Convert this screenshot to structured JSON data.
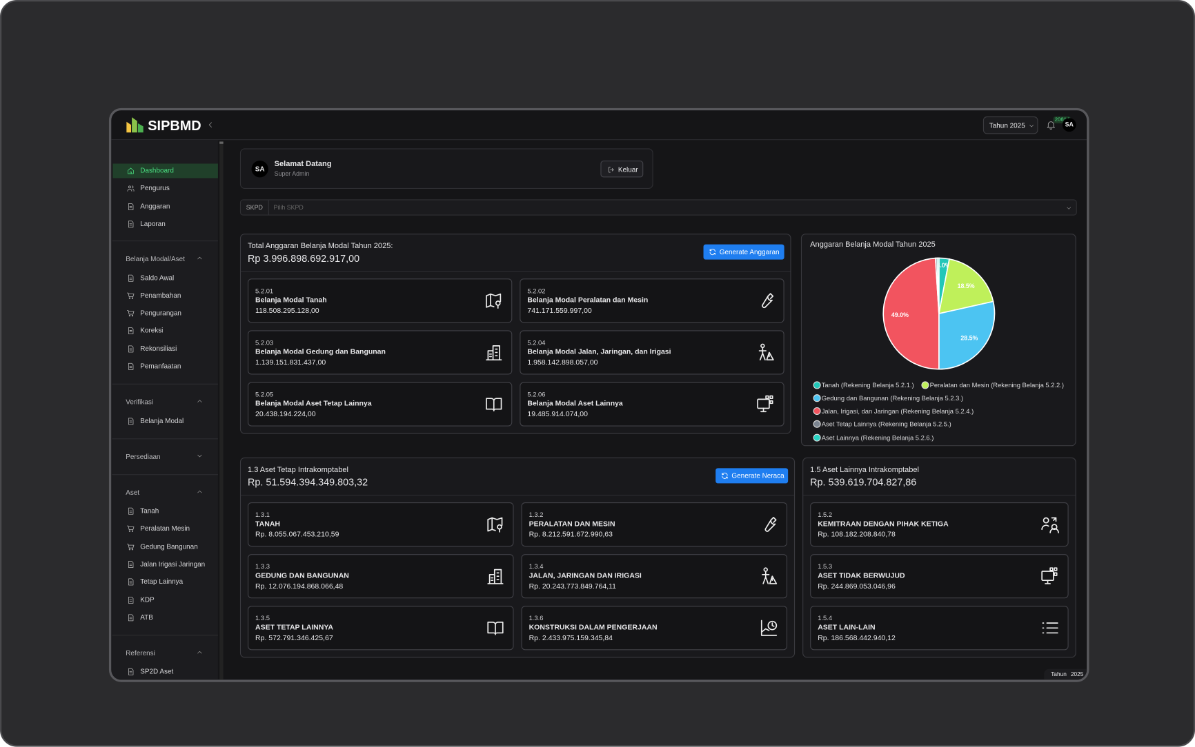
{
  "header": {
    "logo_text": "SIPBMD",
    "year_select": "Tahun 2025",
    "notification_badge": "20814",
    "avatar": "SA"
  },
  "sidebar": {
    "items": [
      "Dashboard",
      "Pengurus",
      "Anggaran",
      "Laporan"
    ],
    "sections": [
      {
        "title": "Belanja Modal/Aset",
        "items": [
          "Saldo Awal",
          "Penambahan",
          "Pengurangan",
          "Koreksi",
          "Rekonsiliasi",
          "Pemanfaatan"
        ]
      },
      {
        "title": "Verifikasi",
        "items": [
          "Belanja Modal"
        ]
      },
      {
        "title": "Persediaan",
        "items": []
      },
      {
        "title": "Aset",
        "items": [
          "Tanah",
          "Peralatan Mesin",
          "Gedung Bangunan",
          "Jalan Irigasi Jaringan",
          "Tetap Lainnya",
          "KDP",
          "ATB"
        ]
      },
      {
        "title": "Referensi",
        "items": [
          "SP2D Aset"
        ]
      }
    ]
  },
  "welcome": {
    "avatar": "SA",
    "title": "Selamat Datang",
    "role": "Super Admin",
    "button": "Keluar"
  },
  "filter": {
    "label": "SKPD",
    "placeholder": "Pilih SKPD"
  },
  "budget": {
    "title": "Total Anggaran Belanja Modal Tahun 2025:",
    "total": "Rp 3.996.898.692.917,00",
    "button": "Generate Anggaran",
    "cards": [
      {
        "code": "5.2.01",
        "name": "Belanja Modal Tanah",
        "amount": "118.508.295.128,00"
      },
      {
        "code": "5.2.02",
        "name": "Belanja Modal Peralatan dan Mesin",
        "amount": "741.171.559.997,00"
      },
      {
        "code": "5.2.03",
        "name": "Belanja Modal Gedung dan Bangunan",
        "amount": "1.139.151.831.437,00"
      },
      {
        "code": "5.2.04",
        "name": "Belanja Modal Jalan, Jaringan, dan Irigasi",
        "amount": "1.958.142.898.057,00"
      },
      {
        "code": "5.2.05",
        "name": "Belanja Modal Aset Tetap Lainnya",
        "amount": "20.438.194.224,00"
      },
      {
        "code": "5.2.06",
        "name": "Belanja Modal Aset Lainnya",
        "amount": "19.485.914.074,00"
      }
    ]
  },
  "chart_data": {
    "type": "pie",
    "title": "Anggaran Belanja Modal Tahun 2025",
    "categories": [
      "Tanah (Rekening Belanja 5.2.1.)",
      "Peralatan dan Mesin (Rekening Belanja 5.2.2.)",
      "Gedung dan Bangunan (Rekening Belanja 5.2.3.)",
      "Jalan, Irigasi, dan Jaringan (Rekening Belanja 5.2.4.)",
      "Aset Tetap Lainnya (Rekening Belanja 5.2.5.)",
      "Aset Lainnya (Rekening Belanja 5.2.6.)"
    ],
    "values": [
      3.0,
      18.5,
      28.5,
      49.0,
      0.5,
      0.5
    ],
    "value_labels": [
      "3.0%",
      "18.5%",
      "28.5%",
      "49.0%",
      null,
      null
    ],
    "colors": [
      "#22c7b8",
      "#bff05a",
      "#4cc4f2",
      "#f2545f",
      "#7b8490",
      "#2ad4c4"
    ]
  },
  "fixed_assets": {
    "title": "1.3 Aset Tetap Intrakomptabel",
    "total": "Rp. 51.594.394.349.803,32",
    "button": "Generate Neraca",
    "cards": [
      {
        "code": "1.3.1",
        "name": "TANAH",
        "amount": "Rp. 8.055.067.453.210,59"
      },
      {
        "code": "1.3.2",
        "name": "PERALATAN DAN MESIN",
        "amount": "Rp. 8.212.591.672.990,63"
      },
      {
        "code": "1.3.3",
        "name": "GEDUNG DAN BANGUNAN",
        "amount": "Rp. 12.076.194.868.066,48"
      },
      {
        "code": "1.3.4",
        "name": "JALAN, JARINGAN DAN IRIGASI",
        "amount": "Rp. 20.243.773.849.764,11"
      },
      {
        "code": "1.3.5",
        "name": "ASET TETAP LAINNYA",
        "amount": "Rp. 572.791.346.425,67"
      },
      {
        "code": "1.3.6",
        "name": "KONSTRUKSI DALAM PENGERJAAN",
        "amount": "Rp. 2.433.975.159.345,84"
      }
    ]
  },
  "other_assets": {
    "title": "1.5 Aset Lainnya Intrakomptabel",
    "total": "Rp. 539.619.704.827,86",
    "cards": [
      {
        "code": "1.5.2",
        "name": "KEMITRAAN DENGAN PIHAK KETIGA",
        "amount": "Rp. 108.182.208.840,78"
      },
      {
        "code": "1.5.3",
        "name": "ASET TIDAK BERWUJUD",
        "amount": "Rp. 244.869.053.046,96"
      },
      {
        "code": "1.5.4",
        "name": "ASET LAIN-LAIN",
        "amount": "Rp. 186.568.442.940,12"
      }
    ]
  },
  "footer": {
    "label": "Tahun",
    "year": "2025"
  }
}
